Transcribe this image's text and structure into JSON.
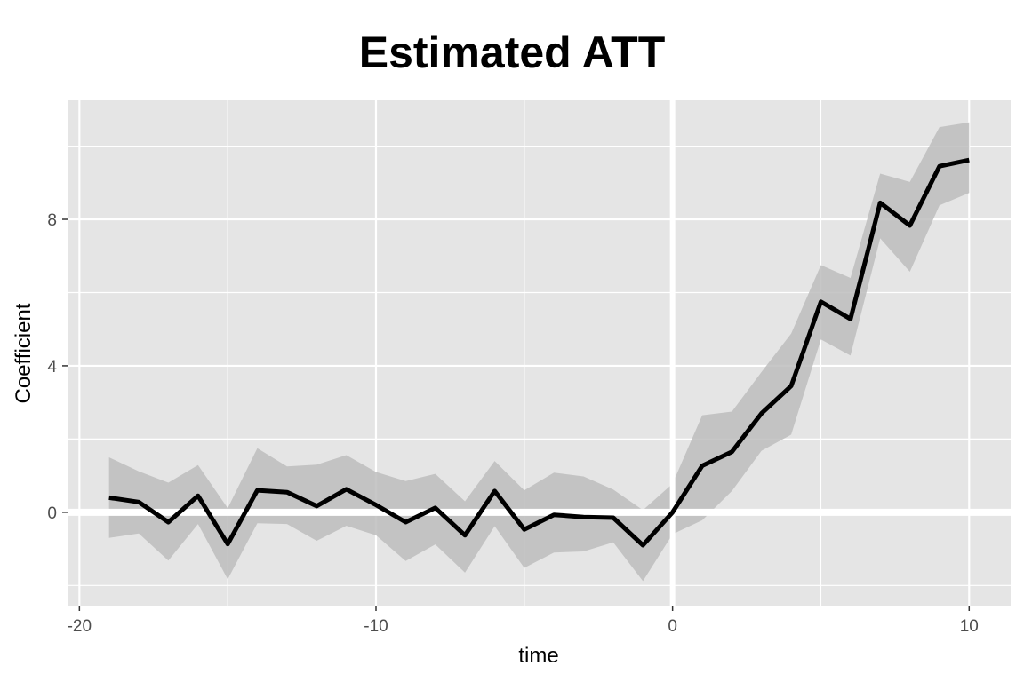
{
  "chart_data": {
    "type": "line",
    "title": "Estimated ATT",
    "xlabel": "time",
    "ylabel": "Coefficient",
    "xlim": [
      -20.4,
      11.4
    ],
    "ylim": [
      -2.55,
      11.25
    ],
    "x_ticks": [
      -20,
      -10,
      0,
      10
    ],
    "x_tick_labels": [
      "-20",
      "-10",
      "0",
      "10"
    ],
    "y_ticks": [
      0,
      4,
      8
    ],
    "y_tick_labels": [
      "0",
      "4",
      "8"
    ],
    "grid": true,
    "background": "#e5e5e5",
    "grid_color": "#ffffff",
    "line_color": "#000000",
    "ribbon_color": "#bdbdbd",
    "reference_lines": {
      "h": 0,
      "v": 0
    },
    "series": [
      {
        "x": [
          -19,
          -18,
          -17,
          -16,
          -15,
          -14,
          -13,
          -12,
          -11,
          -10,
          -9,
          -8,
          -7,
          -6,
          -5,
          -4,
          -3,
          -2,
          -1,
          0,
          1,
          2,
          3,
          4,
          5,
          6,
          7,
          8,
          9,
          10
        ],
        "y": [
          0.4,
          0.28,
          -0.27,
          0.45,
          -0.87,
          0.6,
          0.55,
          0.17,
          0.63,
          0.2,
          -0.27,
          0.12,
          -0.63,
          0.58,
          -0.47,
          -0.07,
          -0.13,
          -0.15,
          -0.9,
          0.0,
          1.27,
          1.65,
          2.7,
          3.45,
          5.75,
          5.28,
          8.45,
          7.83,
          9.45,
          9.62
        ],
        "lower": [
          -0.7,
          -0.58,
          -1.32,
          -0.32,
          -1.83,
          -0.3,
          -0.32,
          -0.78,
          -0.37,
          -0.63,
          -1.33,
          -0.88,
          -1.65,
          -0.38,
          -1.52,
          -1.1,
          -1.07,
          -0.82,
          -1.88,
          -0.6,
          -0.22,
          0.58,
          1.68,
          2.12,
          4.72,
          4.28,
          7.48,
          6.57,
          8.38,
          8.72
        ],
        "upper": [
          1.5,
          1.12,
          0.81,
          1.29,
          0.11,
          1.75,
          1.25,
          1.3,
          1.56,
          1.1,
          0.85,
          1.05,
          0.3,
          1.4,
          0.6,
          1.08,
          0.98,
          0.62,
          0.06,
          0.78,
          2.65,
          2.75,
          3.83,
          4.88,
          6.75,
          6.4,
          9.25,
          9.02,
          10.52,
          10.65
        ]
      }
    ]
  }
}
